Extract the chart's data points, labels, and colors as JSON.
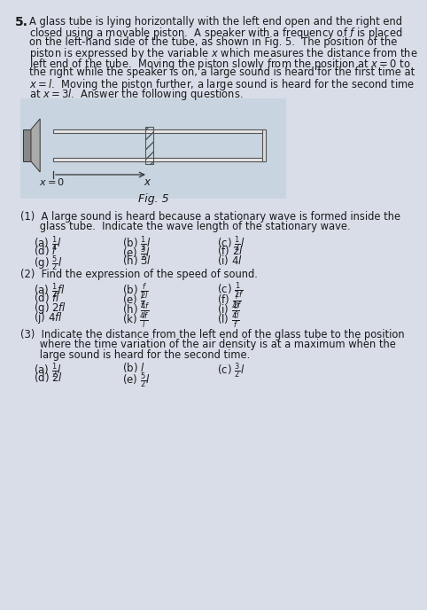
{
  "bg_color": "#d8dde8",
  "text_color": "#1a1a1a",
  "title_number": "5.",
  "intro_text": "A glass tube is lying horizontally with the left end open and the right end\nclosed using a movable piston.  A speaker with a frequency of $f$ is placed\non the left-hand side of the tube, as shown in Fig. 5.  The position of the\npiston is expressed by the variable $x$ which measures the distance from the\nleft end of the tube.  Moving the piston slowly from the position at $x=0$ to\nthe right while the speaker is on, a large sound is heard for the first time at\n$x=l$.  Moving the piston further, a large sound is heard for the second time\nat $x=3l$.  Answer the following questions.",
  "fig_label": "Fig. 5",
  "q1_text": "(1)  A large sound is heard because a stationary wave is formed inside the\n      glass tube.  Indicate the wave length of the stationary wave.",
  "q1_options": [
    [
      "(a) $\\frac{1}{4}l$",
      "(b) $\\frac{1}{3}l$",
      "(c) $\\frac{1}{2}l$"
    ],
    [
      "(d) $l$",
      "(e) $\\frac{3}{2}l$",
      "(f) $2l$"
    ],
    [
      "(g) $\\frac{5}{2}l$",
      "(h) $3l$",
      "(i) $4l$"
    ]
  ],
  "q2_text": "(2)  Find the expression of the speed of sound.",
  "q2_options": [
    [
      "(a) $\\frac{1}{2}fl$",
      "(b) $\\frac{f}{2l}$",
      "(c) $\\frac{1}{2f}$"
    ],
    [
      "(d) $fl$",
      "(e) $\\frac{l}{f}$",
      "(f) $\\frac{1}{2f}$"
    ],
    [
      "(g) $2fl$",
      "(h) $\\frac{4f}{l}$",
      "(i) $\\frac{4l}{f}$"
    ],
    [
      "(j) $4fl$",
      "(k) $\\frac{4f}{l}$",
      "(l) $\\frac{4l}{f}$"
    ]
  ],
  "q3_text": "(3)  Indicate the distance from the left end of the glass tube to the position\n      where the time variation of the air density is at a maximum when the\n      large sound is heard for the second time.",
  "q3_options": [
    [
      "(a) $\\frac{1}{2}l$",
      "(b) $l$",
      "(c) $\\frac{3}{2}l$"
    ],
    [
      "(d) $2l$",
      "(e) $\\frac{5}{2}l$",
      ""
    ]
  ]
}
